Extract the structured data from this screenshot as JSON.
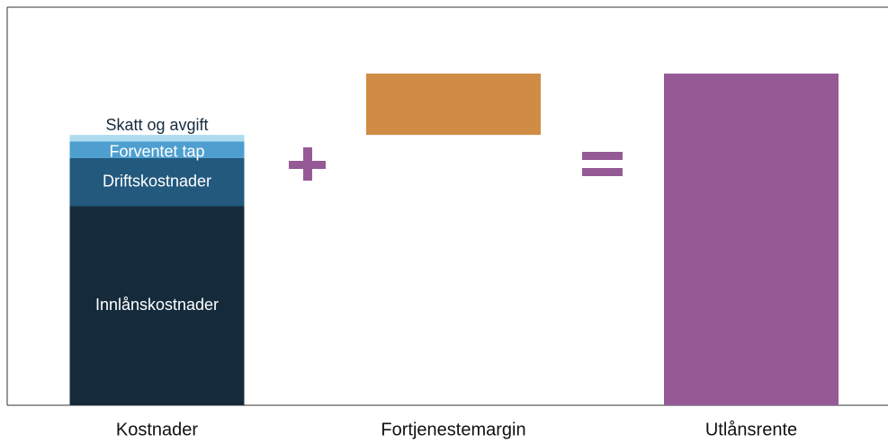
{
  "chart_data": {
    "type": "waterfall",
    "categories": [
      "Kostnader",
      "Fortjenestemargin",
      "Utlånsrente"
    ],
    "components": [
      {
        "name": "Innlånskostnader",
        "color": "#152b3c",
        "value": 60
      },
      {
        "name": "Driftskostnader",
        "color": "#22597d",
        "value": 14.5
      },
      {
        "name": "Forventet tap",
        "color": "#4e9fd0",
        "value": 5
      },
      {
        "name": "Skatt og avgift",
        "color": "#aedcf0",
        "value": 2
      }
    ],
    "margin": {
      "color": "#d08b44",
      "value": 18.5
    },
    "total": {
      "color": "#955a96",
      "value": 100
    },
    "ylim": [
      0,
      120
    ]
  }
}
